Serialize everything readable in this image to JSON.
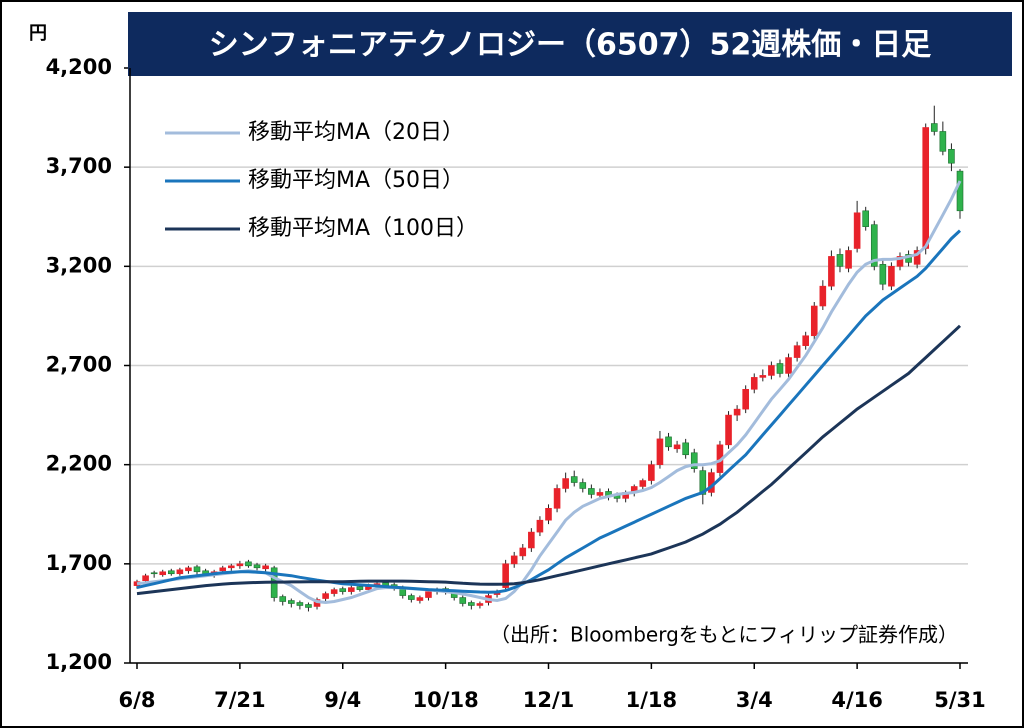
{
  "chart_data": {
    "type": "candlestick",
    "title": "シンフォニアテクノロジー（6507）52週株価・日足",
    "unit_label": "円",
    "source_note": "（出所：Bloombergをもとにフィリップ証券作成）",
    "categories": [
      "6/8",
      null,
      null,
      null,
      null,
      null,
      null,
      null,
      null,
      null,
      null,
      null,
      "7/21",
      null,
      null,
      null,
      null,
      null,
      null,
      null,
      null,
      null,
      null,
      null,
      "9/4",
      null,
      null,
      null,
      null,
      null,
      null,
      null,
      null,
      null,
      null,
      null,
      "10/18",
      null,
      null,
      null,
      null,
      null,
      null,
      null,
      null,
      null,
      null,
      null,
      "12/1",
      null,
      null,
      null,
      null,
      null,
      null,
      null,
      null,
      null,
      null,
      null,
      "1/18",
      null,
      null,
      null,
      null,
      null,
      null,
      null,
      null,
      null,
      null,
      null,
      "3/4",
      null,
      null,
      null,
      null,
      null,
      null,
      null,
      null,
      null,
      null,
      null,
      "4/16",
      null,
      null,
      null,
      null,
      null,
      null,
      null,
      null,
      null,
      null,
      null,
      "5/31"
    ],
    "open": [
      1590,
      1615,
      1655,
      1645,
      1665,
      1650,
      1665,
      1685,
      1665,
      1645,
      1665,
      1680,
      1690,
      1710,
      1695,
      1675,
      1680,
      1535,
      1515,
      1505,
      1495,
      1485,
      1525,
      1550,
      1575,
      1560,
      1585,
      1570,
      1590,
      1605,
      1595,
      1580,
      1540,
      1515,
      1530,
      1560,
      1575,
      1560,
      1530,
      1505,
      1490,
      1505,
      1545,
      1580,
      1700,
      1740,
      1780,
      1860,
      1920,
      1980,
      2080,
      2140,
      2110,
      2080,
      2045,
      2065,
      2045,
      2030,
      2060,
      2090,
      2120,
      2200,
      2340,
      2280,
      2310,
      2260,
      2170,
      2060,
      2160,
      2300,
      2450,
      2480,
      2580,
      2640,
      2650,
      2710,
      2660,
      2740,
      2800,
      2850,
      3000,
      3100,
      3260,
      3190,
      3290,
      3480,
      3410,
      3210,
      3100,
      3200,
      3260,
      3210,
      3290,
      3920,
      3880,
      3790,
      3680
    ],
    "high": [
      1620,
      1650,
      1665,
      1670,
      1675,
      1680,
      1690,
      1695,
      1675,
      1670,
      1690,
      1700,
      1715,
      1720,
      1705,
      1700,
      1690,
      1545,
      1525,
      1515,
      1505,
      1530,
      1560,
      1580,
      1585,
      1590,
      1595,
      1600,
      1610,
      1615,
      1605,
      1590,
      1550,
      1540,
      1570,
      1580,
      1585,
      1570,
      1540,
      1515,
      1510,
      1550,
      1570,
      1720,
      1760,
      1800,
      1880,
      1940,
      2000,
      2100,
      2160,
      2170,
      2130,
      2100,
      2080,
      2080,
      2060,
      2070,
      2100,
      2130,
      2220,
      2370,
      2360,
      2320,
      2330,
      2280,
      2190,
      2180,
      2320,
      2470,
      2500,
      2600,
      2660,
      2680,
      2720,
      2730,
      2760,
      2820,
      2870,
      3020,
      3130,
      3280,
      3290,
      3300,
      3530,
      3500,
      3430,
      3230,
      3220,
      3270,
      3280,
      3300,
      3920,
      4010,
      3930,
      3820,
      3690
    ],
    "low": [
      1575,
      1600,
      1630,
      1635,
      1640,
      1640,
      1650,
      1645,
      1640,
      1630,
      1650,
      1665,
      1675,
      1680,
      1665,
      1660,
      1510,
      1490,
      1480,
      1470,
      1460,
      1470,
      1510,
      1535,
      1545,
      1545,
      1560,
      1555,
      1575,
      1580,
      1565,
      1525,
      1505,
      1500,
      1515,
      1545,
      1545,
      1515,
      1485,
      1470,
      1475,
      1490,
      1530,
      1565,
      1680,
      1720,
      1760,
      1840,
      1900,
      1960,
      2060,
      2090,
      2060,
      2030,
      2030,
      2020,
      2010,
      2010,
      2040,
      2070,
      2100,
      2180,
      2270,
      2260,
      2230,
      2160,
      2000,
      2040,
      2140,
      2280,
      2420,
      2460,
      2560,
      2620,
      2630,
      2640,
      2640,
      2720,
      2780,
      2830,
      2980,
      3080,
      3170,
      3170,
      3270,
      3380,
      3180,
      3080,
      3080,
      3180,
      3200,
      3190,
      3260,
      3860,
      3760,
      3680,
      3440
    ],
    "close": [
      1610,
      1640,
      1650,
      1660,
      1650,
      1670,
      1680,
      1660,
      1650,
      1660,
      1680,
      1690,
      1700,
      1690,
      1680,
      1690,
      1530,
      1510,
      1500,
      1490,
      1480,
      1520,
      1550,
      1570,
      1560,
      1580,
      1570,
      1590,
      1600,
      1590,
      1580,
      1540,
      1520,
      1530,
      1560,
      1570,
      1560,
      1530,
      1500,
      1490,
      1500,
      1540,
      1560,
      1700,
      1740,
      1780,
      1860,
      1920,
      1980,
      2080,
      2130,
      2110,
      2080,
      2050,
      2060,
      2040,
      2030,
      2060,
      2090,
      2120,
      2200,
      2330,
      2290,
      2300,
      2250,
      2180,
      2050,
      2160,
      2300,
      2450,
      2480,
      2580,
      2640,
      2650,
      2700,
      2660,
      2740,
      2800,
      2850,
      3000,
      3100,
      3250,
      3200,
      3280,
      3470,
      3400,
      3200,
      3110,
      3200,
      3250,
      3220,
      3280,
      3900,
      3880,
      3780,
      3720,
      3480
    ],
    "up_color": "#e8222a",
    "down_color": "#2fb24c",
    "series": [
      {
        "name": "移動平均MA（20日）",
        "color": "#a3bcdc",
        "values": [
          1600,
          1605,
          1610,
          1615,
          1620,
          1625,
          1630,
          1635,
          1640,
          1645,
          1650,
          1655,
          1660,
          1665,
          1660,
          1655,
          1630,
          1610,
          1590,
          1560,
          1530,
          1510,
          1505,
          1510,
          1520,
          1530,
          1545,
          1560,
          1575,
          1580,
          1580,
          1578,
          1575,
          1572,
          1568,
          1565,
          1560,
          1555,
          1548,
          1540,
          1530,
          1520,
          1515,
          1525,
          1560,
          1610,
          1670,
          1740,
          1800,
          1860,
          1920,
          1960,
          1990,
          2010,
          2030,
          2040,
          2050,
          2055,
          2060,
          2070,
          2085,
          2110,
          2140,
          2170,
          2190,
          2200,
          2200,
          2205,
          2220,
          2260,
          2300,
          2350,
          2410,
          2470,
          2530,
          2580,
          2630,
          2690,
          2750,
          2820,
          2890,
          2970,
          3040,
          3110,
          3170,
          3210,
          3230,
          3235,
          3235,
          3240,
          3250,
          3260,
          3300,
          3380,
          3460,
          3540,
          3630
        ]
      },
      {
        "name": "移動平均MA（50日）",
        "color": "#1a75bc",
        "values": [
          1580,
          1590,
          1600,
          1610,
          1620,
          1630,
          1635,
          1640,
          1645,
          1650,
          1655,
          1658,
          1660,
          1660,
          1658,
          1655,
          1650,
          1645,
          1640,
          1632,
          1625,
          1618,
          1612,
          1606,
          1600,
          1597,
          1594,
          1591,
          1588,
          1585,
          1582,
          1579,
          1576,
          1573,
          1570,
          1568,
          1566,
          1564,
          1562,
          1560,
          1558,
          1557,
          1558,
          1565,
          1580,
          1600,
          1620,
          1645,
          1670,
          1700,
          1730,
          1755,
          1780,
          1805,
          1830,
          1850,
          1870,
          1890,
          1910,
          1930,
          1950,
          1970,
          1990,
          2010,
          2030,
          2045,
          2060,
          2090,
          2130,
          2170,
          2210,
          2250,
          2300,
          2350,
          2400,
          2450,
          2500,
          2550,
          2600,
          2650,
          2700,
          2750,
          2800,
          2850,
          2900,
          2950,
          2990,
          3030,
          3060,
          3090,
          3120,
          3150,
          3190,
          3240,
          3290,
          3340,
          3380
        ]
      },
      {
        "name": "移動平均MA（100日）",
        "color": "#1c3558",
        "values": [
          1550,
          1555,
          1560,
          1565,
          1570,
          1575,
          1580,
          1585,
          1590,
          1594,
          1598,
          1601,
          1603,
          1605,
          1606,
          1607,
          1608,
          1608,
          1609,
          1609,
          1610,
          1610,
          1610,
          1610,
          1610,
          1611,
          1612,
          1613,
          1613,
          1613,
          1613,
          1613,
          1612,
          1611,
          1610,
          1609,
          1608,
          1605,
          1602,
          1600,
          1598,
          1597,
          1597,
          1598,
          1600,
          1605,
          1612,
          1620,
          1630,
          1640,
          1650,
          1660,
          1670,
          1680,
          1690,
          1700,
          1710,
          1720,
          1730,
          1740,
          1750,
          1765,
          1780,
          1795,
          1810,
          1830,
          1850,
          1875,
          1900,
          1930,
          1960,
          1995,
          2030,
          2065,
          2100,
          2140,
          2180,
          2220,
          2260,
          2300,
          2340,
          2375,
          2410,
          2445,
          2480,
          2510,
          2540,
          2570,
          2600,
          2630,
          2660,
          2700,
          2740,
          2780,
          2820,
          2860,
          2900
        ]
      }
    ],
    "ylim": [
      1200,
      4200
    ],
    "yticks": [
      {
        "value": 1200,
        "label": "1,200"
      },
      {
        "value": 1700,
        "label": "1,700"
      },
      {
        "value": 2200,
        "label": "2,200"
      },
      {
        "value": 2700,
        "label": "2,700"
      },
      {
        "value": 3200,
        "label": "3,200"
      },
      {
        "value": 3700,
        "label": "3,700"
      },
      {
        "value": 4200,
        "label": "4,200"
      }
    ],
    "grid": true,
    "legend": "upper left"
  }
}
